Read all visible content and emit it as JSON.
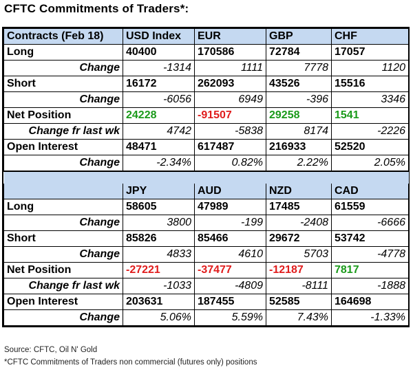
{
  "title": "CFTC Commitments of Traders*:",
  "table1": {
    "header": [
      "Contracts (Feb 18)",
      "USD Index",
      "EUR",
      "GBP",
      "CHF"
    ],
    "long": {
      "label": "Long",
      "values": [
        "40400",
        "170586",
        "72784",
        "17057"
      ]
    },
    "long_change": {
      "label": "Change",
      "values": [
        "-1314",
        "1111",
        "7778",
        "1120"
      ]
    },
    "short": {
      "label": "Short",
      "values": [
        "16172",
        "262093",
        "43526",
        "15516"
      ]
    },
    "short_change": {
      "label": "Change",
      "values": [
        "-6056",
        "6949",
        "-396",
        "3346"
      ]
    },
    "net": {
      "label": "Net Position",
      "values": [
        "24228",
        "-91507",
        "29258",
        "1541"
      ]
    },
    "net_change": {
      "label": "Change fr last wk",
      "values": [
        "4742",
        "-5838",
        "8174",
        "-2226"
      ]
    },
    "oi": {
      "label": "Open Interest",
      "values": [
        "48471",
        "617487",
        "216933",
        "52520"
      ]
    },
    "oi_change": {
      "label": "Change",
      "values": [
        "-2.34%",
        "0.82%",
        "2.22%",
        "2.05%"
      ]
    }
  },
  "table2": {
    "header": [
      "",
      "JPY",
      "AUD",
      "NZD",
      "CAD"
    ],
    "long": {
      "label": "Long",
      "values": [
        "58605",
        "47989",
        "17485",
        "61559"
      ]
    },
    "long_change": {
      "label": "Change",
      "values": [
        "3800",
        "-199",
        "-2408",
        "-6666"
      ]
    },
    "short": {
      "label": "Short",
      "values": [
        "85826",
        "85466",
        "29672",
        "53742"
      ]
    },
    "short_change": {
      "label": "Change",
      "values": [
        "4833",
        "4610",
        "5703",
        "-4778"
      ]
    },
    "net": {
      "label": "Net Position",
      "values": [
        "-27221",
        "-37477",
        "-12187",
        "7817"
      ]
    },
    "net_change": {
      "label": "Change fr last wk",
      "values": [
        "-1033",
        "-4809",
        "-8111",
        "-1888"
      ]
    },
    "oi": {
      "label": "Open Interest",
      "values": [
        "203631",
        "187455",
        "52585",
        "164698"
      ]
    },
    "oi_change": {
      "label": "Change",
      "values": [
        "5.06%",
        "5.59%",
        "7.43%",
        "-1.33%"
      ]
    }
  },
  "colors": {
    "header_bg": "#c5d9f1",
    "positive": "#1a9a1a",
    "negative": "#e01c1c"
  },
  "footer": {
    "source": "Source: CFTC, Oil N' Gold",
    "note": "*CFTC Commitments of Traders non commercial (futures only) positions"
  }
}
